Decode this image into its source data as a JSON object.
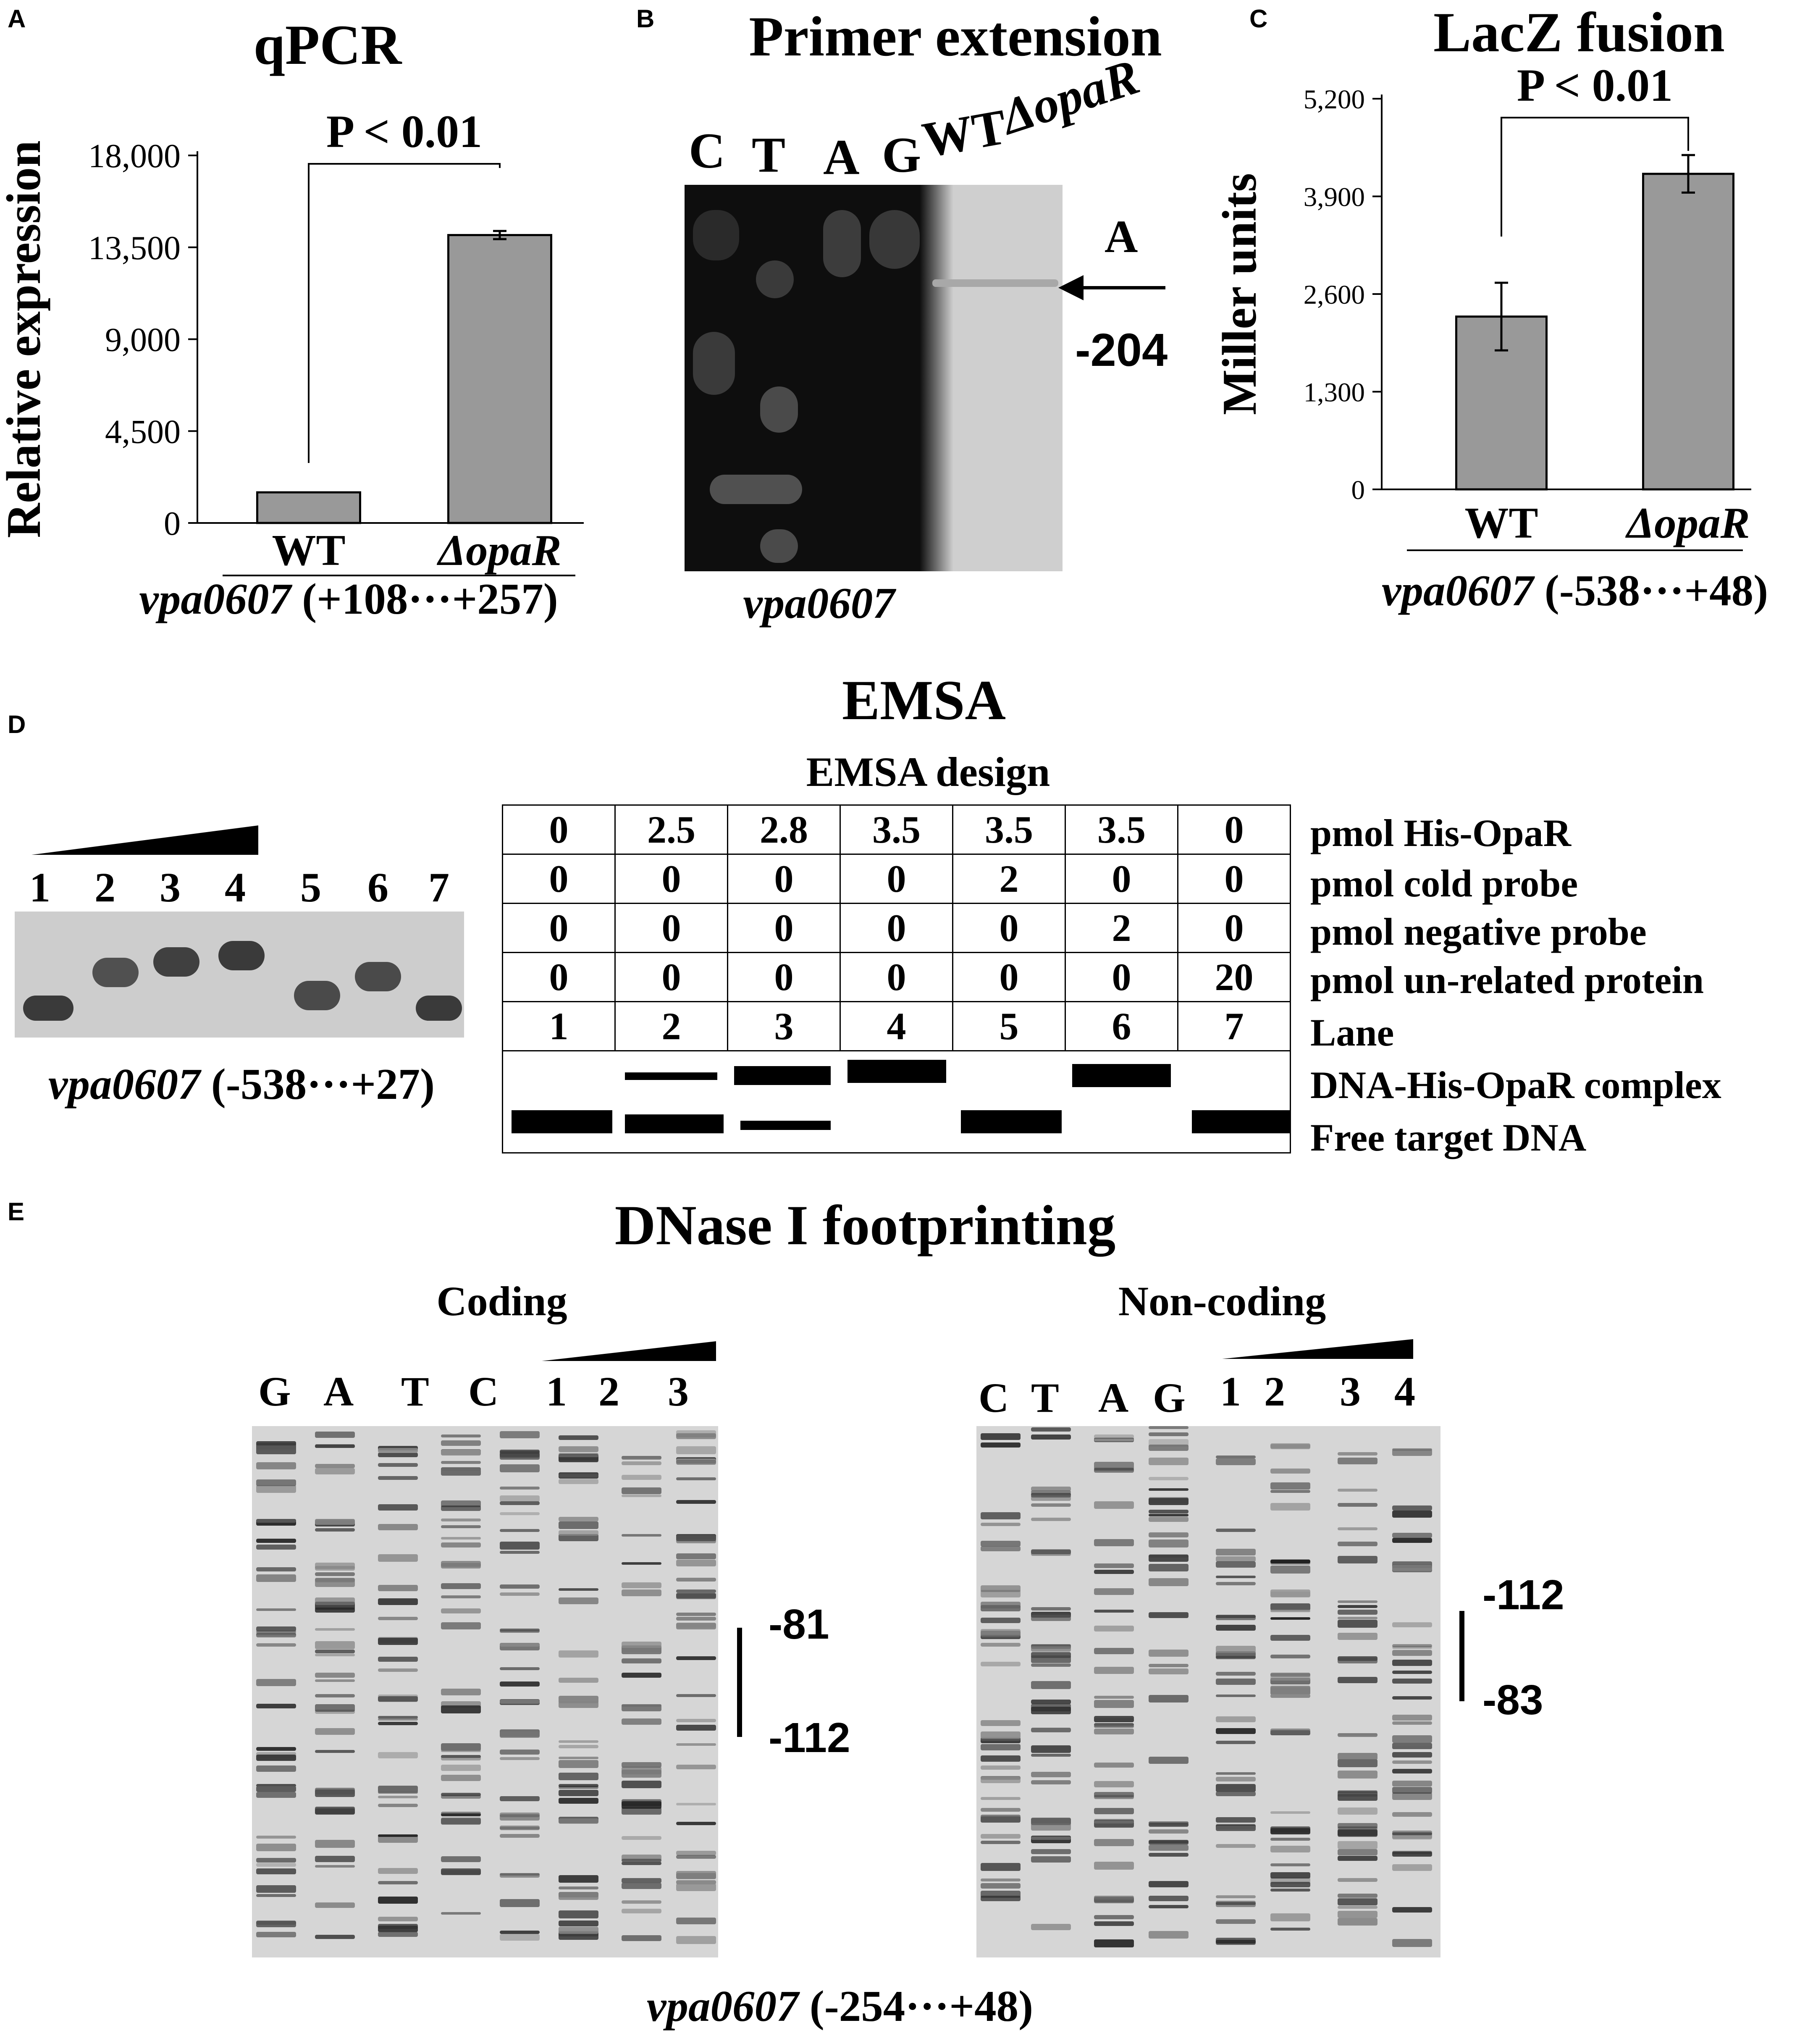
{
  "panels": {
    "a": {
      "label": "A",
      "title": "qPCR",
      "significance": "P < 0.01",
      "caption_gene": "vpa0607",
      "caption_range": "(+108···+257)"
    },
    "b": {
      "label": "B",
      "title": "Primer extension",
      "lanes": [
        "C",
        "T",
        "A",
        "G",
        "WT",
        "ΔopaR"
      ],
      "site_base": "A",
      "site_position": "-204",
      "caption_gene": "vpa0607"
    },
    "c": {
      "label": "C",
      "title": "LacZ fusion",
      "significance": "P < 0.01",
      "caption_gene": "vpa0607",
      "caption_range": "(-538···+48)"
    },
    "d": {
      "label": "D",
      "title": "EMSA",
      "design_title": "EMSA design",
      "gel_lanes": [
        "1",
        "2",
        "3",
        "4",
        "5",
        "6",
        "7"
      ],
      "caption_gene": "vpa0607",
      "caption_range": "(-538···+27)",
      "table_rows": [
        {
          "label": "pmol His-OpaR",
          "values": [
            "0",
            "2.5",
            "2.8",
            "3.5",
            "3.5",
            "3.5",
            "0"
          ]
        },
        {
          "label": "pmol cold probe",
          "values": [
            "0",
            "0",
            "0",
            "0",
            "2",
            "0",
            "0"
          ]
        },
        {
          "label": "pmol negative probe",
          "values": [
            "0",
            "0",
            "0",
            "0",
            "0",
            "2",
            "0"
          ]
        },
        {
          "label": "pmol un-related protein",
          "values": [
            "0",
            "0",
            "0",
            "0",
            "0",
            "0",
            "20"
          ]
        },
        {
          "label": "Lane",
          "values": [
            "1",
            "2",
            "3",
            "4",
            "5",
            "6",
            "7"
          ]
        }
      ],
      "complex_label": "DNA-His-OpaR complex",
      "free_label": "Free target DNA"
    },
    "e": {
      "label": "E",
      "title": "DNase I footprinting",
      "coding_title": "Coding",
      "coding_lanes": [
        "G",
        "A",
        "T",
        "C",
        "1",
        "2",
        "3"
      ],
      "coding_marks": [
        "-81",
        "-112"
      ],
      "noncoding_title": "Non-coding",
      "noncoding_lanes": [
        "C",
        "T",
        "A",
        "G",
        "1",
        "2",
        "3",
        "4"
      ],
      "noncoding_marks": [
        "-112",
        "-83"
      ],
      "caption_gene": "vpa0607",
      "caption_range": "(-254···+48)"
    }
  },
  "chart_data": [
    {
      "type": "bar",
      "title": "qPCR",
      "ylabel": "Relative expression",
      "categories": [
        "WT",
        "ΔopaR"
      ],
      "values": [
        1500,
        14100
      ],
      "errors": [
        0,
        200
      ],
      "ylim": [
        0,
        18000
      ],
      "yticks": [
        "0",
        "4,500",
        "9,000",
        "13,500",
        "18,000"
      ],
      "ytick_values": [
        0,
        4500,
        9000,
        13500,
        18000
      ],
      "bar_color": "#999999"
    },
    {
      "type": "bar",
      "title": "LacZ fusion",
      "ylabel": "Miller units",
      "categories": [
        "WT",
        "ΔopaR"
      ],
      "values": [
        2300,
        4200
      ],
      "errors": [
        450,
        250
      ],
      "ylim": [
        0,
        5200
      ],
      "yticks": [
        "0",
        "1,300",
        "2,600",
        "3,900",
        "5,200"
      ],
      "ytick_values": [
        0,
        1300,
        2600,
        3900,
        5200
      ],
      "bar_color": "#999999"
    }
  ]
}
